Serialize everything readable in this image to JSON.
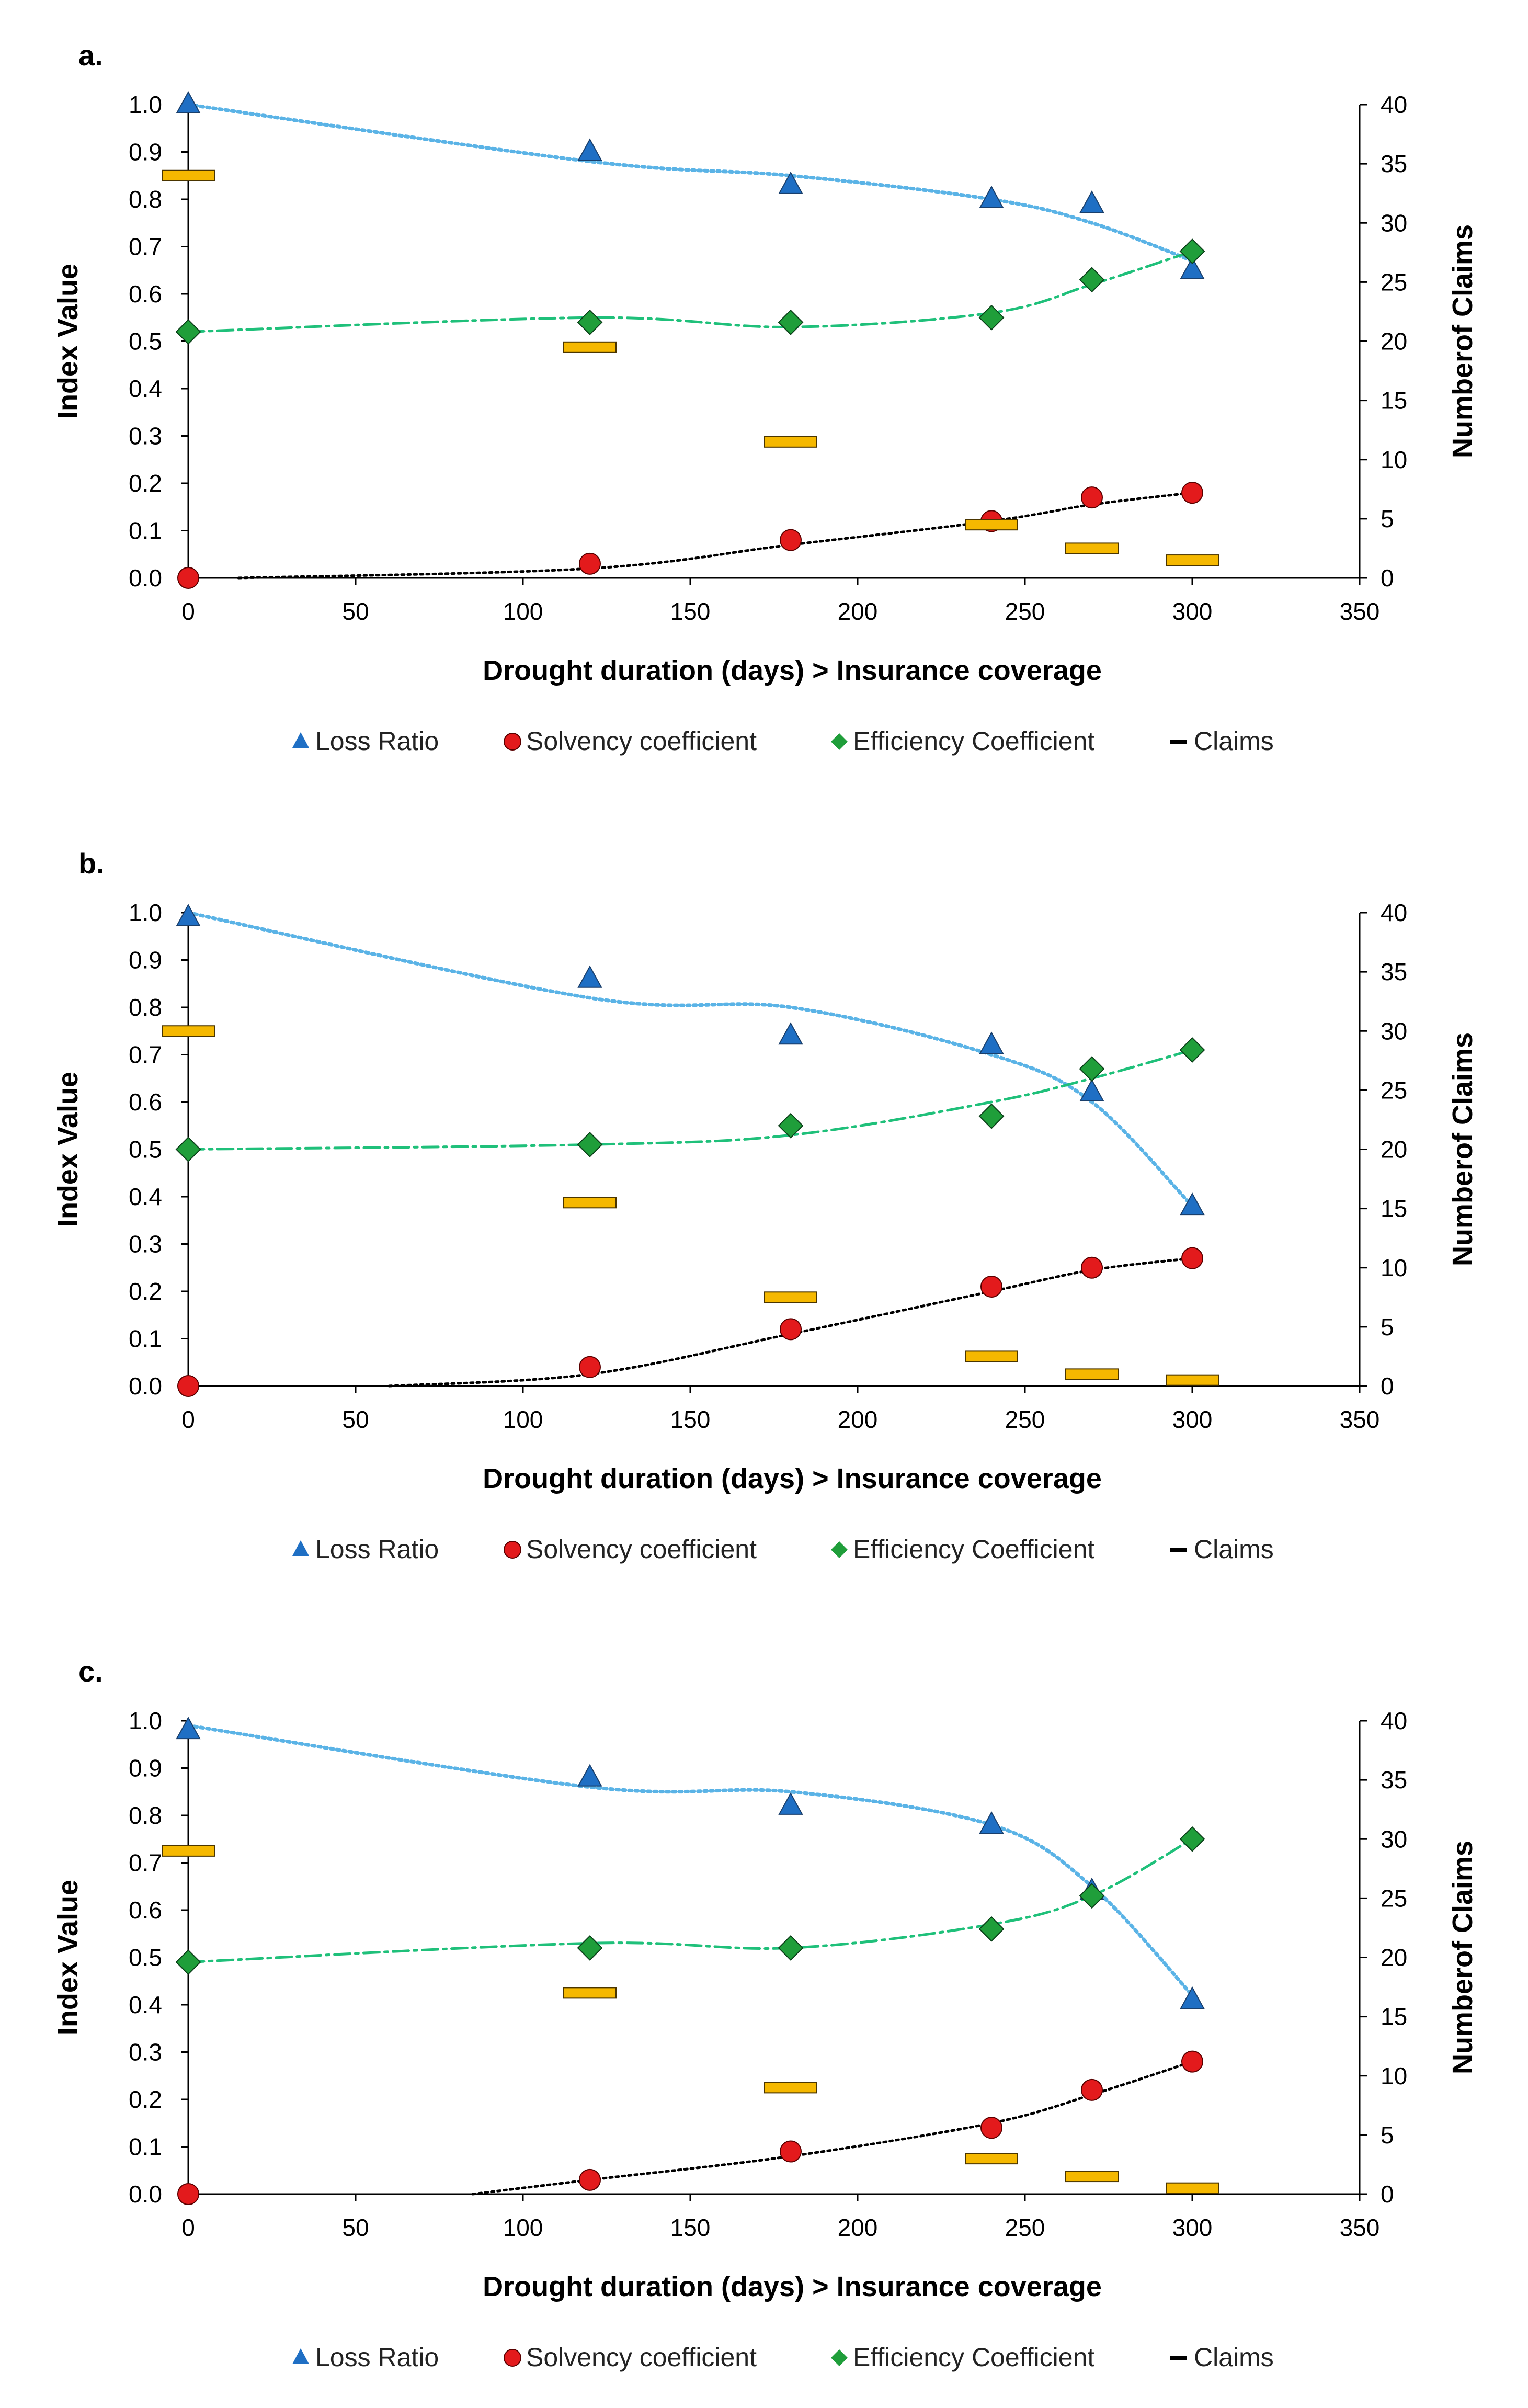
{
  "chart_data": [
    {
      "panel": "a.",
      "type": "scatter",
      "xlabel": "Drought duration (days) > Insurance coverage",
      "ylabel": "Index Value",
      "y2label": "Numberof Claims",
      "xlim": [
        0,
        350
      ],
      "ylim": [
        0,
        1.0
      ],
      "y2lim": [
        0,
        40
      ],
      "x_ticks": [
        "0",
        "50",
        "100",
        "150",
        "200",
        "250",
        "300",
        "350"
      ],
      "y_ticks": [
        "0.0",
        "0.1",
        "0.2",
        "0.3",
        "0.4",
        "0.5",
        "0.6",
        "0.7",
        "0.8",
        "0.9",
        "1.0"
      ],
      "y2_ticks": [
        "0",
        "5",
        "10",
        "15",
        "20",
        "25",
        "30",
        "35",
        "40"
      ],
      "x": [
        0,
        120,
        180,
        240,
        270,
        300
      ],
      "series": [
        {
          "name": "Loss Ratio",
          "axis": "left",
          "values": [
            1.0,
            0.9,
            0.83,
            0.8,
            0.79,
            0.65
          ],
          "trend": [
            1.0,
            0.88,
            0.85,
            0.8,
            0.75,
            0.67
          ]
        },
        {
          "name": "Solvency coefficient",
          "axis": "left",
          "values": [
            0.0,
            0.03,
            0.08,
            0.12,
            0.17,
            0.18
          ],
          "trend": [
            0.0,
            0.02,
            0.07,
            0.12,
            0.155,
            0.18
          ]
        },
        {
          "name": "Efficiency Coefficient",
          "axis": "left",
          "values": [
            0.52,
            0.54,
            0.54,
            0.55,
            0.63,
            0.69
          ],
          "trend": [
            0.52,
            0.55,
            0.53,
            0.56,
            0.62,
            0.69
          ]
        },
        {
          "name": "Claims",
          "axis": "right",
          "values": [
            34,
            19.5,
            11.5,
            4.5,
            2.5,
            1.5
          ]
        }
      ],
      "trend_start": {
        "Solvency coefficient": 15
      }
    },
    {
      "panel": "b.",
      "type": "scatter",
      "xlabel": "Drought duration (days) > Insurance coverage",
      "ylabel": "Index Value",
      "y2label": "Numberof Claims",
      "xlim": [
        0,
        350
      ],
      "ylim": [
        0,
        1.0
      ],
      "y2lim": [
        0,
        40
      ],
      "x_ticks": [
        "0",
        "50",
        "100",
        "150",
        "200",
        "250",
        "300",
        "350"
      ],
      "y_ticks": [
        "0.0",
        "0.1",
        "0.2",
        "0.3",
        "0.4",
        "0.5",
        "0.6",
        "0.7",
        "0.8",
        "0.9",
        "1.0"
      ],
      "y2_ticks": [
        "0",
        "5",
        "10",
        "15",
        "20",
        "25",
        "30",
        "35",
        "40"
      ],
      "x": [
        0,
        120,
        180,
        240,
        270,
        300
      ],
      "series": [
        {
          "name": "Loss Ratio",
          "axis": "left",
          "values": [
            0.99,
            0.86,
            0.74,
            0.72,
            0.62,
            0.38
          ],
          "trend": [
            1.0,
            0.82,
            0.8,
            0.7,
            0.6,
            0.38
          ]
        },
        {
          "name": "Solvency coefficient",
          "axis": "left",
          "values": [
            0.0,
            0.04,
            0.12,
            0.21,
            0.25,
            0.27
          ],
          "trend": [
            0.0,
            0.025,
            0.11,
            0.2,
            0.245,
            0.27
          ]
        },
        {
          "name": "Efficiency Coefficient",
          "axis": "left",
          "values": [
            0.5,
            0.51,
            0.55,
            0.57,
            0.67,
            0.71
          ],
          "trend": [
            0.5,
            0.51,
            0.53,
            0.6,
            0.65,
            0.71
          ]
        },
        {
          "name": "Claims",
          "axis": "right",
          "values": [
            30,
            15.5,
            7.5,
            2.5,
            1.0,
            0.5
          ]
        }
      ],
      "trend_start": {
        "Solvency coefficient": 60
      }
    },
    {
      "panel": "c.",
      "type": "scatter",
      "xlabel": "Drought duration (days) > Insurance coverage",
      "ylabel": "Index Value",
      "y2label": "Numberof Claims",
      "xlim": [
        0,
        350
      ],
      "ylim": [
        0,
        1.0
      ],
      "y2lim": [
        0,
        40
      ],
      "x_ticks": [
        "0",
        "50",
        "100",
        "150",
        "200",
        "250",
        "300",
        "350"
      ],
      "y_ticks": [
        "0.0",
        "0.1",
        "0.2",
        "0.3",
        "0.4",
        "0.5",
        "0.6",
        "0.7",
        "0.8",
        "0.9",
        "1.0"
      ],
      "y2_ticks": [
        "0",
        "5",
        "10",
        "15",
        "20",
        "25",
        "30",
        "35",
        "40"
      ],
      "x": [
        0,
        120,
        180,
        240,
        270,
        300
      ],
      "series": [
        {
          "name": "Loss Ratio",
          "axis": "left",
          "values": [
            0.98,
            0.88,
            0.82,
            0.78,
            0.64,
            0.41
          ],
          "trend": [
            0.99,
            0.86,
            0.85,
            0.78,
            0.65,
            0.42
          ]
        },
        {
          "name": "Solvency coefficient",
          "axis": "left",
          "values": [
            0.0,
            0.03,
            0.09,
            0.14,
            0.22,
            0.28
          ],
          "trend": [
            0.0,
            0.03,
            0.08,
            0.15,
            0.21,
            0.28
          ]
        },
        {
          "name": "Efficiency Coefficient",
          "axis": "left",
          "values": [
            0.49,
            0.52,
            0.52,
            0.56,
            0.63,
            0.75
          ],
          "trend": [
            0.49,
            0.53,
            0.52,
            0.57,
            0.63,
            0.75
          ]
        },
        {
          "name": "Claims",
          "axis": "right",
          "values": [
            29,
            17,
            9,
            3,
            1.5,
            0.5
          ]
        }
      ],
      "trend_start": {
        "Solvency coefficient": 85
      }
    }
  ],
  "legend": {
    "placement": "bottom",
    "items": [
      "Loss Ratio",
      "Solvency coefficient",
      "Efficiency Coefficient",
      "Claims"
    ]
  },
  "colors": {
    "loss_ratio": "#1f6fc4",
    "loss_ratio_trend": "#5ab3e6",
    "solvency": "#e31a1c",
    "solvency_trend": "#000000",
    "efficiency": "#1f9e3a",
    "efficiency_trend": "#1fc07a",
    "claims": "#f5b800"
  }
}
